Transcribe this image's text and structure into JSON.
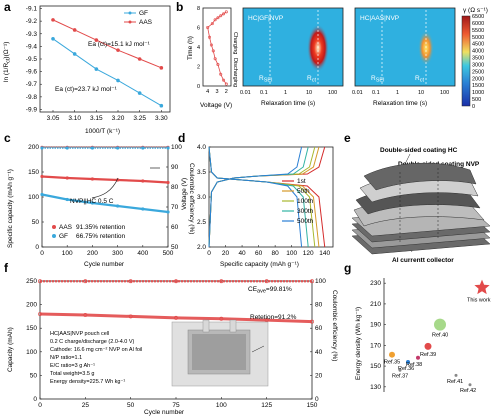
{
  "panel_letters": {
    "a": "a",
    "b": "b",
    "c": "c",
    "d": "d",
    "e": "e",
    "f": "f",
    "g": "g"
  },
  "panel_a": {
    "ylabel": "ln (1/R",
    "ylabel_sub": "ct",
    "ylabel_tail": ")(Ω⁻¹)",
    "xlabel": "1000/T (k⁻¹)",
    "legend": [
      "GF",
      "AAS"
    ],
    "ann_aas": "Ea (ct)=15.1 kJ mol⁻¹",
    "ann_gf": "Ea (ct)=23.7 kJ mol⁻¹"
  },
  "panel_b": {
    "ylabel": "Time (h)",
    "xlabel": "Voltage (V)",
    "label_charging": "Charging",
    "label_discharging": "Discharging",
    "map1_title": "HC|GF|NVP",
    "map2_title": "HC|AAS|NVP",
    "xlabel_relax": "Relaxation time (s)",
    "r_labels": [
      "R",
      "R"
    ],
    "r_subs1": [
      "SEI",
      "ct"
    ],
    "r_subs2": [
      "SEI",
      "ct"
    ],
    "colorbar_title": "γ (Ω s⁻¹)",
    "colorbar_ticks": [
      "6500",
      "6000",
      "5500",
      "5000",
      "4500",
      "4000",
      "3500",
      "3000",
      "2500",
      "2000",
      "1500",
      "1000",
      "500",
      "0"
    ]
  },
  "panel_c": {
    "ylabel": "Specific capacity (mAh g⁻¹)",
    "y2label": "Coulombic efficiency (%)",
    "xlabel": "Cycle number",
    "annotation": "NVP||HC 0.5 C",
    "legend": [
      {
        "name": "AAS",
        "text": "91.35% retention",
        "color": "#e24a4a"
      },
      {
        "name": "GF",
        "text": "66.75% retention",
        "color": "#3aa8dc"
      }
    ]
  },
  "panel_d": {
    "ylabel": "Voltage (V)",
    "xlabel": "Specific capacity (mAh g⁻¹)",
    "legend": [
      {
        "name": "1st",
        "color": "#d42a2a"
      },
      {
        "name": "50th",
        "color": "#d59a2a"
      },
      {
        "name": "100th",
        "color": "#a8b82f"
      },
      {
        "name": "300th",
        "color": "#33b3a3"
      },
      {
        "name": "500th",
        "color": "#2a7fd4"
      }
    ]
  },
  "panel_e": {
    "label_hc": "Double-sided coating HC",
    "label_nvp": "Double-sided coating NVP",
    "label_al": "Al currentt collector"
  },
  "panel_f": {
    "ylabel": "Capacity (mAh)",
    "y2label": "Coulombic efficiency (%)",
    "xlabel": "Cycle number",
    "ce_label": "CE",
    "ce_sub": "ave",
    "ce_value": "=99.81%",
    "retention": "Retetion=91.2%",
    "info": [
      "HC|AAS|NVP pouch cell",
      "0.2 C charge/discharge (2.0-4.0 V)",
      "Cathode: 16.6 mg cm⁻² NVP on Al foil",
      "N/P ratio=1.1",
      "E/C ratio=3 g Ah⁻¹",
      "Total weight=3.5 g",
      "Energy density=225.7 Wh kg⁻¹"
    ]
  },
  "panel_g": {
    "ylabel": "Energy density (Wh kg⁻¹)",
    "this_work": "This work",
    "refs": [
      "Ref.40",
      "Ref.39",
      "Ref.35",
      "Ref.36",
      "Ref.38",
      "Ref.37",
      "Ref.41",
      "Ref.42"
    ]
  },
  "chart_data": [
    {
      "panel": "a",
      "type": "line",
      "xlim": [
        3.02,
        3.32
      ],
      "ylim": [
        -9.92,
        -9.08
      ],
      "x_ticks": [
        "3.05",
        "3.10",
        "3.15",
        "3.20",
        "3.25",
        "3.30"
      ],
      "y_ticks": [
        "-9.1",
        "-9.2",
        "-9.3",
        "-9.4",
        "-9.5",
        "-9.6",
        "-9.7",
        "-9.8",
        "-9.9"
      ],
      "series": [
        {
          "name": "GF",
          "color": "#3aa8dc",
          "x": [
            3.05,
            3.1,
            3.15,
            3.2,
            3.25,
            3.3
          ],
          "y": [
            -9.34,
            -9.46,
            -9.58,
            -9.67,
            -9.77,
            -9.87
          ]
        },
        {
          "name": "AAS",
          "color": "#e24a4a",
          "x": [
            3.05,
            3.1,
            3.15,
            3.2,
            3.25,
            3.3
          ],
          "y": [
            -9.19,
            -9.27,
            -9.35,
            -9.43,
            -9.5,
            -9.57
          ]
        }
      ]
    },
    {
      "panel": "b-left",
      "type": "line",
      "xlim": [
        1.5,
        4.5
      ],
      "ylim": [
        0,
        8
      ],
      "x_ticks": [
        "4",
        "3",
        "2"
      ],
      "y_ticks": [
        "0",
        "2",
        "4",
        "6",
        "8"
      ],
      "series": [
        {
          "name": "charge-discharge",
          "color": "#e24a4a",
          "x": [
            2.0,
            2.3,
            2.6,
            2.9,
            3.2,
            3.4,
            3.6,
            3.8,
            4.0,
            3.5,
            3.2,
            2.9,
            2.6,
            2.3,
            2.0
          ],
          "y": [
            0.2,
            0.6,
            1.2,
            2.2,
            2.8,
            3.6,
            4.2,
            5.0,
            6.0,
            6.4,
            6.8,
            7.0,
            7.2,
            7.4,
            7.6
          ]
        }
      ]
    },
    {
      "panel": "c",
      "type": "scatter",
      "xlim": [
        0,
        500
      ],
      "ylim": [
        0,
        200
      ],
      "y2lim": [
        50,
        100
      ],
      "x_ticks": [
        "0",
        "100",
        "200",
        "300",
        "400",
        "500"
      ],
      "y_ticks": [
        "0",
        "50",
        "100",
        "150",
        "200"
      ],
      "y2_ticks": [
        "50",
        "60",
        "70",
        "80",
        "90",
        "100"
      ],
      "series": [
        {
          "name": "AAS capacity",
          "color": "#e24a4a",
          "x": [
            0,
            100,
            200,
            300,
            400,
            500
          ],
          "y": [
            141,
            138,
            136,
            134,
            132,
            129
          ]
        },
        {
          "name": "GF capacity",
          "color": "#3aa8dc",
          "x": [
            0,
            100,
            200,
            300,
            400,
            500
          ],
          "y": [
            105,
            95,
            88,
            82,
            76,
            70
          ]
        },
        {
          "name": "AAS CE",
          "color": "#e24a4a",
          "x": [
            0,
            100,
            200,
            300,
            400,
            500
          ],
          "y": [
            99.8,
            99.8,
            99.8,
            99.8,
            99.8,
            99.8
          ]
        },
        {
          "name": "GF CE",
          "color": "#3aa8dc",
          "x": [
            0,
            100,
            200,
            300,
            400,
            500
          ],
          "y": [
            99.5,
            99.5,
            99.5,
            99.5,
            99.5,
            99.5
          ]
        }
      ]
    },
    {
      "panel": "d",
      "type": "line",
      "xlim": [
        0,
        150
      ],
      "ylim": [
        2.0,
        4.0
      ],
      "x_ticks": [
        "0",
        "20",
        "40",
        "60",
        "80",
        "100",
        "120",
        "140"
      ],
      "y_ticks": [
        "2.0",
        "2.5",
        "3.0",
        "3.5",
        "4.0"
      ],
      "series": [
        {
          "name": "1st",
          "color": "#d42a2a",
          "end": 140
        },
        {
          "name": "50th",
          "color": "#d59a2a",
          "end": 133
        },
        {
          "name": "100th",
          "color": "#a8b82f",
          "end": 128
        },
        {
          "name": "300th",
          "color": "#33b3a3",
          "end": 120
        },
        {
          "name": "500th",
          "color": "#2a7fd4",
          "end": 112
        }
      ]
    },
    {
      "panel": "f",
      "type": "scatter",
      "xlim": [
        0,
        150
      ],
      "ylim": [
        0,
        250
      ],
      "y2lim": [
        0,
        100
      ],
      "x_ticks": [
        "0",
        "25",
        "50",
        "75",
        "100",
        "125",
        "150"
      ],
      "y_ticks": [
        "0",
        "50",
        "100",
        "150",
        "200",
        "250"
      ],
      "y2_ticks": [
        "0",
        "20",
        "40",
        "60",
        "80",
        "100"
      ],
      "series": [
        {
          "name": "Capacity",
          "color": "#e24a4a",
          "x": [
            0,
            25,
            50,
            75,
            100,
            125,
            150
          ],
          "y": [
            180,
            178,
            175,
            172,
            170,
            167,
            164
          ]
        },
        {
          "name": "CE",
          "color": "#e24a4a",
          "x": [
            0,
            25,
            50,
            75,
            100,
            125,
            150
          ],
          "y": [
            99.8,
            99.8,
            99.8,
            99.8,
            99.8,
            99.8,
            99.8
          ]
        }
      ]
    },
    {
      "panel": "g",
      "type": "scatter",
      "ylim": [
        125,
        235
      ],
      "y_ticks": [
        "130",
        "150",
        "170",
        "190",
        "210",
        "230"
      ],
      "points": [
        {
          "label": "This work",
          "y": 225.7,
          "color": "#e24a4a",
          "shape": "star",
          "size": 8
        },
        {
          "label": "Ref.40",
          "y": 190,
          "color": "#a7d98a",
          "size": 6
        },
        {
          "label": "Ref.39",
          "y": 169,
          "color": "#e24a4a",
          "size": 3.5
        },
        {
          "label": "Ref.35",
          "y": 161,
          "color": "#f0a030",
          "size": 3
        },
        {
          "label": "Ref.36",
          "y": 154,
          "color": "#2a7fd4",
          "size": 2
        },
        {
          "label": "Ref.38",
          "y": 158,
          "color": "#c23a6a",
          "size": 2
        },
        {
          "label": "Ref.37",
          "y": 146,
          "color": "#888888",
          "size": 1.5
        },
        {
          "label": "Ref.41",
          "y": 141,
          "color": "#888888",
          "size": 1.5
        },
        {
          "label": "Ref.42",
          "y": 132,
          "color": "#888888",
          "size": 1.5
        }
      ]
    }
  ]
}
